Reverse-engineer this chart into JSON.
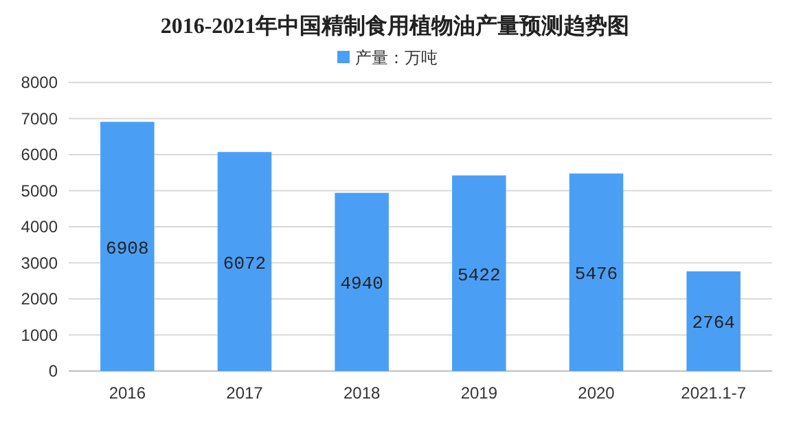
{
  "chart_data": {
    "type": "bar",
    "title": "2016-2021年中国精制食用植物油产量预测趋势图",
    "categories": [
      "2016",
      "2017",
      "2018",
      "2019",
      "2020",
      "2021.1-7"
    ],
    "series": [
      {
        "name": "产量：万吨",
        "color": "#4a9ff5",
        "values": [
          6908,
          6072,
          4940,
          5422,
          5476,
          2764
        ]
      }
    ],
    "ylim": [
      0,
      8000
    ],
    "yticks": [
      0,
      1000,
      2000,
      3000,
      4000,
      5000,
      6000,
      7000,
      8000
    ],
    "grid": "y",
    "legend": "top",
    "data_labels": true
  }
}
